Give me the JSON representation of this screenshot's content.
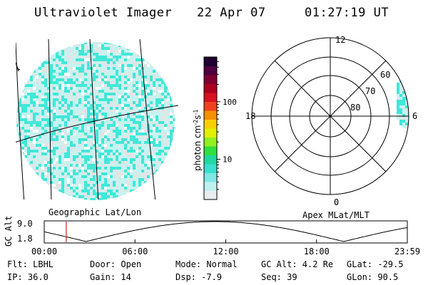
{
  "header": {
    "title": "Ultraviolet Imager",
    "date": "22 Apr 07",
    "time": "01:27:19 UT"
  },
  "colorbar": {
    "label": "photon cm^-2 s^-1",
    "ticks": [
      {
        "label": "100",
        "value": 100
      },
      {
        "label": "10",
        "value": 10
      }
    ],
    "colors": [
      "#e8eef0",
      "#bff0f0",
      "#7fe8e4",
      "#38e0d0",
      "#20d8a0",
      "#30e040",
      "#90f020",
      "#e0f000",
      "#f8d000",
      "#f89000",
      "#f04020",
      "#d81020",
      "#b00020",
      "#800030",
      "#500040",
      "#200030"
    ]
  },
  "geo_panel": {
    "caption": "Geographic Lat/Lon"
  },
  "polar_panel": {
    "caption": "Apex MLat/MLT",
    "mlt_labels": {
      "top": "12",
      "left": "18",
      "right": "6",
      "bottom": "0"
    },
    "lat_labels": [
      "80",
      "70",
      "60"
    ]
  },
  "alt_plot": {
    "ylabel": "GC Alt",
    "y_ticks": [
      "9.0",
      "1.8"
    ],
    "x_ticks": [
      "00:00",
      "06:00",
      "12:00",
      "18:00",
      "23:59"
    ],
    "current_time_fraction": 0.0607
  },
  "info": {
    "flt": "Flt: LBHL",
    "door": "Door: Open",
    "mode": "Mode: Normal",
    "gc_alt": "GC Alt: 4.2 Re",
    "glat": "GLat: -29.5",
    "ip": "IP: 36.0",
    "gain": "Gain: 14",
    "dsp": "Dsp:   -7.9",
    "seq": "Seq: 39",
    "glon": "GLon:  90.5"
  },
  "colors": {
    "speckle_cyan": "#40e8d8",
    "speckle_light": "#c8f2f0",
    "speckle_grey": "#dfe6e6",
    "time_marker": "#d02020"
  }
}
